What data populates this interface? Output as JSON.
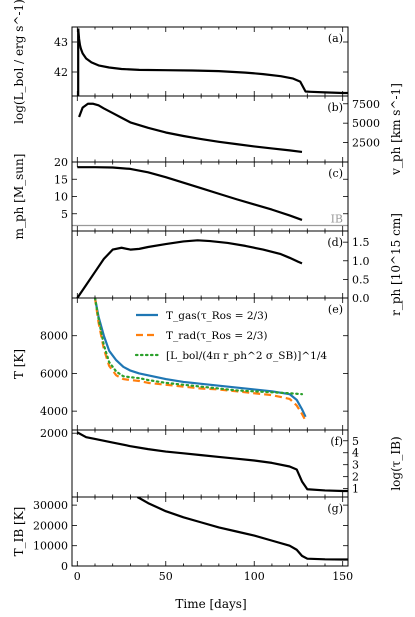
{
  "chart_data": {
    "type": "line",
    "xlabel": "Time [days]",
    "xlim": [
      -3,
      153
    ],
    "xticks": [
      0,
      50,
      100,
      150
    ],
    "xtick_labels": [
      "0",
      "50",
      "100",
      "150"
    ],
    "panels": [
      {
        "tag": "(a)",
        "ylabel_left": "log(L_bol / erg s^-1)",
        "ylim_left": [
          41.2,
          43.5
        ],
        "yticks_left": [
          42,
          43
        ],
        "ytick_labels_left": [
          "42",
          "43"
        ],
        "series": [
          {
            "name": "",
            "color": "#000000",
            "style": "solid",
            "axis": "left",
            "x": [
              0.5,
              1,
              1.5,
              2,
              3,
              5,
              8,
              12,
              18,
              25,
              35,
              50,
              65,
              80,
              95,
              105,
              115,
              122,
              126,
              129,
              132,
              140,
              150,
              153
            ],
            "y": [
              43.45,
              43.1,
              42.9,
              42.78,
              42.62,
              42.45,
              42.32,
              42.22,
              42.15,
              42.1,
              42.07,
              42.06,
              42.05,
              42.03,
              41.98,
              41.93,
              41.86,
              41.78,
              41.68,
              41.35,
              41.34,
              41.32,
              41.3,
              41.3
            ]
          },
          {
            "name": "",
            "color": "#000000",
            "style": "solid",
            "axis": "left",
            "x": [
              0.5,
              0.5
            ],
            "y": [
              43.45,
              41.2
            ]
          }
        ]
      },
      {
        "tag": "(b)",
        "ylabel_right": "v_ph [km s^-1]",
        "ylim_right": [
          0,
          8500
        ],
        "yticks_right": [
          2500,
          5000,
          7500
        ],
        "ytick_labels_right": [
          "2500",
          "5000",
          "7500"
        ],
        "series": [
          {
            "name": "",
            "color": "#000000",
            "style": "solid",
            "axis": "right",
            "x": [
              1,
              3,
              6,
              9,
              12,
              15,
              20,
              25,
              30,
              40,
              50,
              60,
              70,
              80,
              90,
              100,
              110,
              120,
              127
            ],
            "y": [
              5800,
              7000,
              7500,
              7500,
              7300,
              6900,
              6300,
              5700,
              5100,
              4400,
              3800,
              3350,
              2950,
              2600,
              2300,
              2000,
              1750,
              1500,
              1300
            ]
          }
        ]
      },
      {
        "tag": "(c)",
        "ylabel_left": "m_ph [M_sun]",
        "ylim_left": [
          0,
          20
        ],
        "yticks_left": [
          5,
          10,
          15,
          20
        ],
        "ytick_labels_left": [
          "5",
          "10",
          "15",
          "20"
        ],
        "annotation": "IB",
        "reference_line": {
          "y": 1.6,
          "color": "#999999"
        },
        "series": [
          {
            "name": "",
            "color": "#000000",
            "style": "solid",
            "axis": "left",
            "x": [
              0,
              10,
              20,
              30,
              40,
              50,
              60,
              70,
              80,
              90,
              100,
              110,
              120,
              127
            ],
            "y": [
              18.5,
              18.5,
              18.4,
              18.0,
              17.0,
              15.6,
              14.0,
              12.4,
              10.8,
              9.2,
              7.7,
              6.2,
              4.5,
              3.2
            ]
          }
        ]
      },
      {
        "tag": "(d)",
        "ylabel_right": "r_ph [10^15 cm]",
        "ylim_right": [
          0,
          1.8
        ],
        "yticks_right": [
          0,
          0.5,
          1.0,
          1.5
        ],
        "ytick_labels_right": [
          "0.0",
          "0.5",
          "1.0",
          "1.5"
        ],
        "series": [
          {
            "name": "",
            "color": "#000000",
            "style": "solid",
            "axis": "right",
            "x": [
              0,
              5,
              10,
              15,
              20,
              25,
              30,
              35,
              40,
              50,
              60,
              68,
              75,
              85,
              95,
              105,
              115,
              120,
              125,
              127
            ],
            "y": [
              0.0,
              0.35,
              0.7,
              1.05,
              1.3,
              1.35,
              1.3,
              1.32,
              1.37,
              1.45,
              1.52,
              1.55,
              1.53,
              1.48,
              1.4,
              1.3,
              1.18,
              1.08,
              0.97,
              0.93
            ]
          }
        ]
      },
      {
        "tag": "(e)",
        "ylabel_left": "T [K]",
        "ylim_left": [
          3000,
          10000
        ],
        "yticks_left": [
          4000,
          6000,
          8000
        ],
        "ytick_labels_left": [
          "4000",
          "6000",
          "8000"
        ],
        "series": [
          {
            "name": "T_gas(τ_Ros = 2/3)",
            "color": "#1f77b4",
            "style": "solid",
            "axis": "left",
            "x": [
              10,
              12,
              15,
              18,
              22,
              26,
              30,
              35,
              40,
              50,
              60,
              70,
              80,
              90,
              100,
              110,
              120,
              124,
              127,
              129
            ],
            "y": [
              10000,
              9000,
              8000,
              7200,
              6700,
              6350,
              6150,
              6000,
              5900,
              5700,
              5550,
              5450,
              5350,
              5250,
              5150,
              5050,
              4900,
              4600,
              4100,
              3700
            ]
          },
          {
            "name": "T_rad(τ_Ros = 2/3)",
            "color": "#ff7f0e",
            "style": "dashed",
            "axis": "left",
            "x": [
              10,
              12,
              15,
              18,
              22,
              26,
              30,
              35,
              40,
              50,
              60,
              70,
              80,
              90,
              100,
              110,
              120,
              124,
              127,
              129
            ],
            "y": [
              10000,
              8700,
              7300,
              6400,
              5900,
              5700,
              5650,
              5600,
              5500,
              5400,
              5300,
              5200,
              5150,
              5050,
              4950,
              4850,
              4650,
              4300,
              3850,
              3500
            ]
          },
          {
            "name": "[L_bol/(4π r_ph^2 σ_SB)]^1/4",
            "color": "#2ca02c",
            "style": "dotted",
            "axis": "left",
            "x": [
              10,
              12,
              15,
              18,
              22,
              26,
              30,
              35,
              40,
              50,
              60,
              70,
              80,
              90,
              100,
              110,
              120,
              127
            ],
            "y": [
              10000,
              8900,
              7500,
              6600,
              6100,
              5850,
              5800,
              5750,
              5650,
              5500,
              5400,
              5300,
              5200,
              5100,
              5050,
              5000,
              4950,
              4900
            ]
          }
        ]
      },
      {
        "tag": "(f)",
        "ylabel_left": "",
        "ylim_left": [
          0,
          2100
        ],
        "yticks_left": [
          2000
        ],
        "ytick_labels_left": [
          "2000"
        ],
        "ylabel_right": "log(τ_IB)",
        "ylim_right": [
          0.3,
          5.9
        ],
        "yticks_right": [
          1,
          2,
          3,
          4,
          5
        ],
        "ytick_labels_right": [
          "1",
          "2",
          "3",
          "4",
          "5"
        ],
        "series": [
          {
            "name": "",
            "color": "#000000",
            "style": "solid",
            "axis": "right",
            "x": [
              0,
              5,
              10,
              20,
              30,
              40,
              50,
              60,
              70,
              80,
              90,
              100,
              110,
              120,
              124,
              127,
              130,
              140,
              150,
              153
            ],
            "y": [
              5.7,
              5.3,
              5.15,
              4.85,
              4.55,
              4.3,
              4.1,
              3.95,
              3.8,
              3.65,
              3.5,
              3.35,
              3.15,
              2.85,
              2.6,
              1.6,
              0.95,
              0.85,
              0.8,
              0.8
            ]
          }
        ]
      },
      {
        "tag": "(g)",
        "ylabel_left": "T_IB [K]",
        "ylim_left": [
          0,
          34000
        ],
        "yticks_left": [
          0,
          10000,
          20000,
          30000
        ],
        "ytick_labels_left": [
          "0",
          "10000",
          "20000",
          "30000"
        ],
        "series": [
          {
            "name": "",
            "color": "#000000",
            "style": "solid",
            "axis": "left",
            "x": [
              34,
              40,
              50,
              60,
              70,
              80,
              90,
              100,
              110,
              120,
              124,
              127,
              130,
              140,
              150,
              153
            ],
            "y": [
              34000,
              31000,
              27000,
              24000,
              21500,
              19000,
              17000,
              15000,
              12500,
              10000,
              8000,
              5000,
              3600,
              3300,
              3200,
              3200
            ]
          }
        ]
      }
    ]
  }
}
